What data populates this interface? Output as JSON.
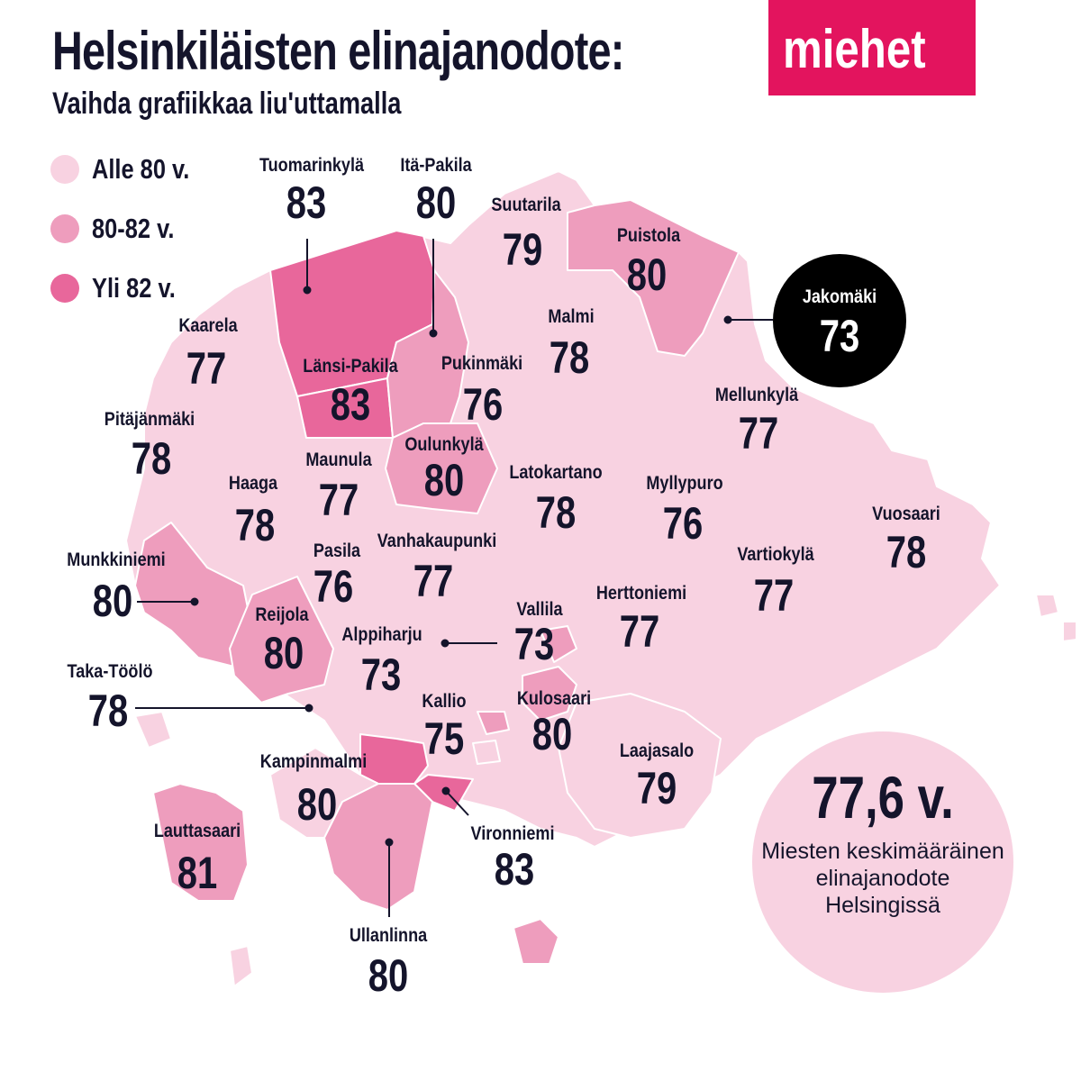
{
  "header": {
    "title": "Helsinkiläisten elinajanodote:",
    "badge": "miehet",
    "subtitle": "Vaihda grafiikkaa liu'uttamalla"
  },
  "colors": {
    "under80": "#f8d2e1",
    "mid": "#ee9dbd",
    "over82": "#e8679b",
    "accent": "#e3145e",
    "text": "#14142b"
  },
  "legend": [
    {
      "label": "Alle 80 v.",
      "color": "#f8d2e1"
    },
    {
      "label": "80-82 v.",
      "color": "#ee9dbd"
    },
    {
      "label": "Yli 82 v.",
      "color": "#e8679b"
    }
  ],
  "districts": [
    {
      "name": "Tuomarinkylä",
      "value": "83",
      "tier": "over82"
    },
    {
      "name": "Itä-Pakila",
      "value": "80",
      "tier": "mid"
    },
    {
      "name": "Suutarila",
      "value": "79",
      "tier": "under80"
    },
    {
      "name": "Puistola",
      "value": "80",
      "tier": "mid"
    },
    {
      "name": "Kaarela",
      "value": "77",
      "tier": "under80"
    },
    {
      "name": "Malmi",
      "value": "78",
      "tier": "under80"
    },
    {
      "name": "Länsi-Pakila",
      "value": "83",
      "tier": "over82"
    },
    {
      "name": "Pukinmäki",
      "value": "76",
      "tier": "under80"
    },
    {
      "name": "Mellunkylä",
      "value": "77",
      "tier": "under80"
    },
    {
      "name": "Pitäjänmäki",
      "value": "78",
      "tier": "under80"
    },
    {
      "name": "Oulunkylä",
      "value": "80",
      "tier": "mid"
    },
    {
      "name": "Maunula",
      "value": "77",
      "tier": "under80"
    },
    {
      "name": "Haaga",
      "value": "78",
      "tier": "under80"
    },
    {
      "name": "Latokartano",
      "value": "78",
      "tier": "under80"
    },
    {
      "name": "Myllypuro",
      "value": "76",
      "tier": "under80"
    },
    {
      "name": "Vuosaari",
      "value": "78",
      "tier": "under80"
    },
    {
      "name": "Munkkiniemi",
      "value": "80",
      "tier": "mid"
    },
    {
      "name": "Pasila",
      "value": "76",
      "tier": "under80"
    },
    {
      "name": "Vanhakaupunki",
      "value": "77",
      "tier": "under80"
    },
    {
      "name": "Vartiokylä",
      "value": "77",
      "tier": "under80"
    },
    {
      "name": "Herttoniemi",
      "value": "77",
      "tier": "under80"
    },
    {
      "name": "Reijola",
      "value": "80",
      "tier": "mid"
    },
    {
      "name": "Vallila",
      "value": "73",
      "tier": "under80"
    },
    {
      "name": "Alppiharju",
      "value": "73",
      "tier": "under80"
    },
    {
      "name": "Taka-Töölö",
      "value": "78",
      "tier": "under80"
    },
    {
      "name": "Kallio",
      "value": "75",
      "tier": "under80"
    },
    {
      "name": "Kulosaari",
      "value": "80",
      "tier": "mid"
    },
    {
      "name": "Laajasalo",
      "value": "79",
      "tier": "under80"
    },
    {
      "name": "Kampinmalmi",
      "value": "80",
      "tier": "mid"
    },
    {
      "name": "Lauttasaari",
      "value": "81",
      "tier": "mid"
    },
    {
      "name": "Vironniemi",
      "value": "83",
      "tier": "over82"
    },
    {
      "name": "Ullanlinna",
      "value": "80",
      "tier": "mid"
    }
  ],
  "jakomaki": {
    "name": "Jakomäki",
    "value": "73"
  },
  "average": {
    "value": "77,6 v.",
    "description": "Miesten keskimääräinen elinajanodote Helsingissä"
  }
}
